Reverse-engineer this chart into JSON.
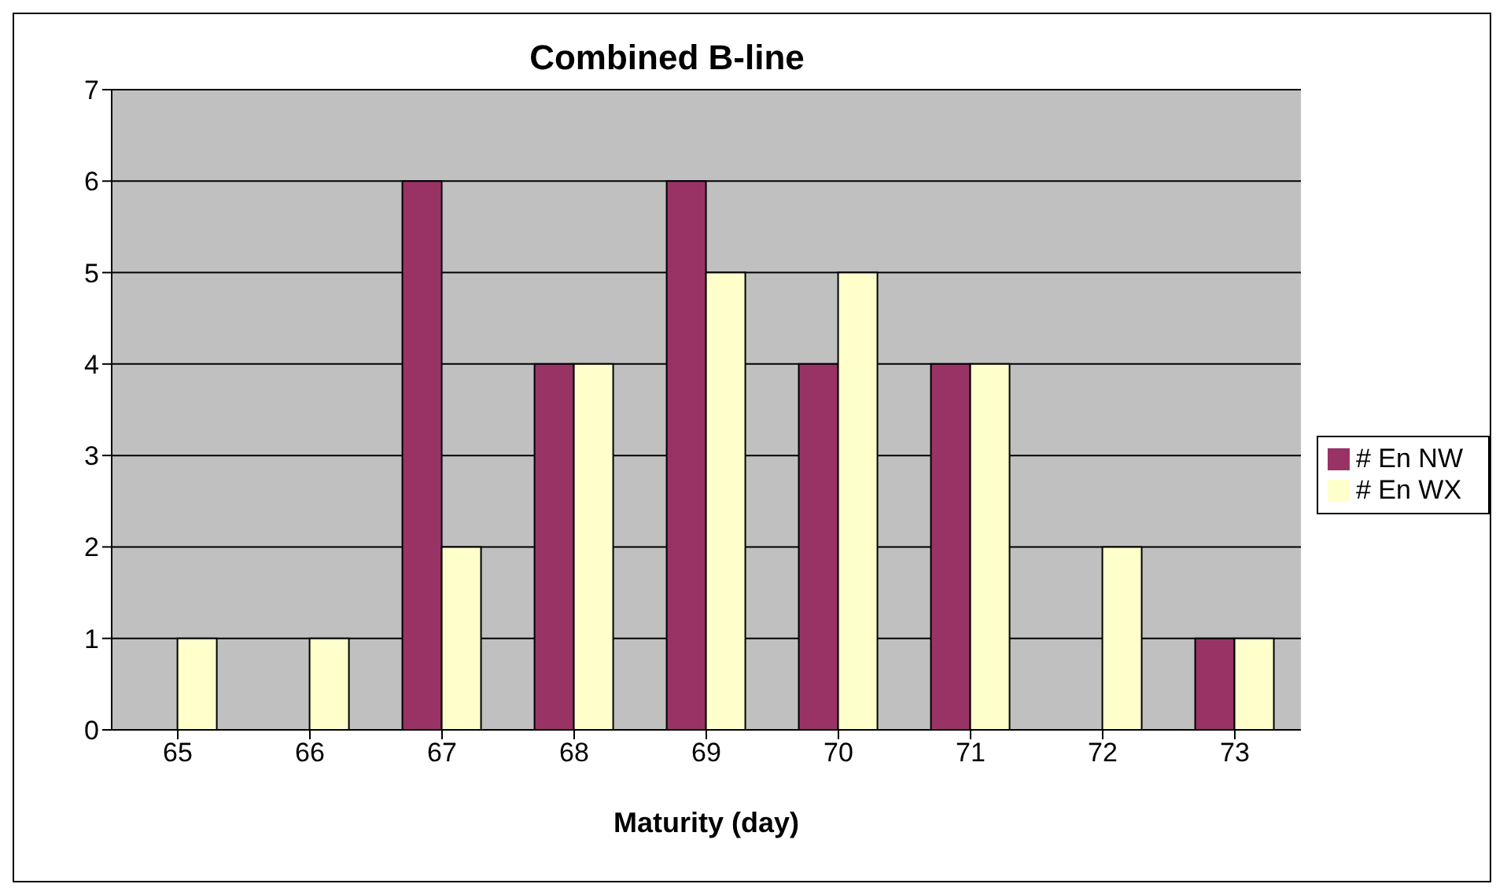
{
  "chart_data": {
    "type": "bar",
    "title": "Combined B-line",
    "xlabel": "Maturity (day)",
    "categories": [
      "65",
      "66",
      "67",
      "68",
      "69",
      "70",
      "71",
      "72",
      "73"
    ],
    "series": [
      {
        "name": "# En NW",
        "color": "#993366",
        "values": [
          0,
          0,
          6,
          4,
          6,
          4,
          4,
          0,
          1
        ]
      },
      {
        "name": "# En WX",
        "color": "#ffffcc",
        "values": [
          1,
          1,
          2,
          4,
          5,
          5,
          4,
          2,
          1
        ]
      }
    ],
    "ylim": [
      0,
      7
    ],
    "yticks": [
      0,
      1,
      2,
      3,
      4,
      5,
      6,
      7
    ],
    "grid": "y",
    "legend": "right"
  }
}
